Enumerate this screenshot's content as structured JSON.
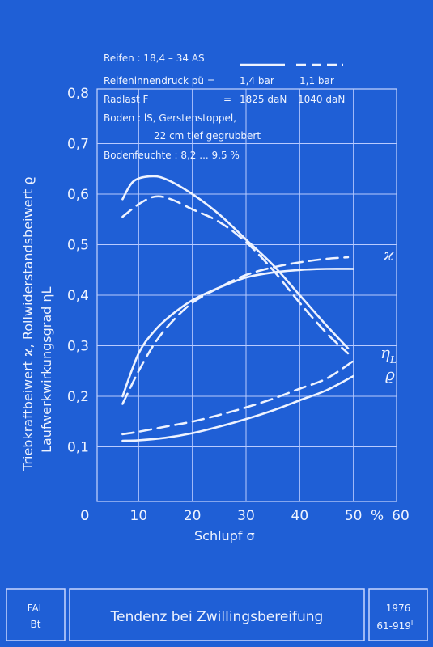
{
  "chart_data": {
    "type": "line",
    "xlabel": "Schlupf σ",
    "ylabel_left_1": "Triebkraftbeiwert ϰ, Rollwiderstandsbeiwert ϱ",
    "ylabel_left_2": "Laufwerkwirkungsgrad ηL",
    "x_ticks": [
      "0",
      "10",
      "20",
      "30",
      "40",
      "50",
      "60"
    ],
    "x_unit": "%",
    "y_ticks": [
      "0",
      "0,1",
      "0,2",
      "0,3",
      "0,4",
      "0,5",
      "0,6",
      "0,7",
      "0,8"
    ],
    "xlim": [
      0,
      60
    ],
    "ylim": [
      0,
      0.8
    ],
    "grid": true,
    "legend": {
      "title": "Reifen : 18,4 – 34 AS",
      "pressure_label": "Reifeninnendruck pü =",
      "pressure_solid": "1,4 bar",
      "pressure_dashed": "1,1 bar",
      "load_label": "Radlast F",
      "load_eq": "=",
      "load_solid": "1825 daN",
      "load_dashed": "1040 daN",
      "soil_1": "Boden : lS, Gerstenstoppel,",
      "soil_2": "22 cm tief gegrubbert",
      "moisture": "Bodenfeuchte : 8,2 ... 9,5 %"
    },
    "series": [
      {
        "curve": "eta_L",
        "style": "solid",
        "x": [
          7,
          9,
          12,
          15,
          20,
          25,
          30,
          35,
          40,
          45,
          49
        ],
        "y": [
          0.59,
          0.625,
          0.635,
          0.63,
          0.6,
          0.56,
          0.51,
          0.46,
          0.4,
          0.34,
          0.295
        ]
      },
      {
        "curve": "eta_L",
        "style": "dashed",
        "x": [
          7,
          10,
          13,
          16,
          20,
          25,
          30,
          35,
          40,
          45,
          49
        ],
        "y": [
          0.555,
          0.58,
          0.595,
          0.59,
          0.57,
          0.545,
          0.505,
          0.45,
          0.385,
          0.325,
          0.285
        ]
      },
      {
        "curve": "kappa",
        "style": "solid",
        "x": [
          7,
          10,
          13,
          16,
          20,
          25,
          30,
          35,
          40,
          45,
          50
        ],
        "y": [
          0.2,
          0.285,
          0.33,
          0.36,
          0.39,
          0.415,
          0.435,
          0.445,
          0.45,
          0.452,
          0.452
        ]
      },
      {
        "curve": "kappa",
        "style": "dashed",
        "x": [
          7,
          10,
          13,
          16,
          20,
          25,
          30,
          35,
          40,
          45,
          49
        ],
        "y": [
          0.185,
          0.25,
          0.305,
          0.345,
          0.385,
          0.415,
          0.44,
          0.455,
          0.465,
          0.472,
          0.475
        ]
      },
      {
        "curve": "rho",
        "style": "solid",
        "x": [
          7,
          10,
          15,
          20,
          25,
          30,
          35,
          40,
          45,
          50
        ],
        "y": [
          0.112,
          0.113,
          0.118,
          0.127,
          0.14,
          0.155,
          0.172,
          0.192,
          0.212,
          0.24
        ]
      },
      {
        "curve": "rho",
        "style": "dashed",
        "x": [
          7,
          10,
          15,
          20,
          25,
          30,
          35,
          40,
          45,
          50
        ],
        "y": [
          0.125,
          0.13,
          0.14,
          0.15,
          0.163,
          0.178,
          0.195,
          0.215,
          0.235,
          0.27
        ]
      }
    ],
    "curve_labels": {
      "kappa": "ϰ",
      "eta": "η",
      "eta_sub": "L",
      "rho": "ϱ"
    }
  },
  "footer": {
    "left_1": "FAL",
    "left_2": "Bt",
    "title": "Tendenz bei Zwillingsbereifung",
    "year": "1976",
    "code": "61-919",
    "code_sup": "II"
  },
  "colors": {
    "background": "#1f5fd6",
    "line": "#eef3ff"
  }
}
